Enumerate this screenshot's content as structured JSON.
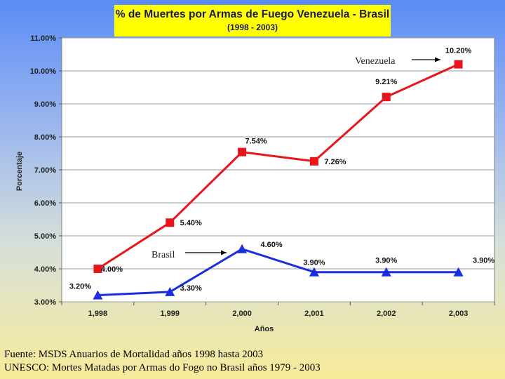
{
  "chart_data": {
    "type": "line",
    "title": "% de Muertes por Armas de Fuego Venezuela - Brasil",
    "subtitle": "(1998 - 2003)",
    "xlabel": "Años",
    "ylabel": "Porcentaje",
    "x": [
      "1,998",
      "1,999",
      "2,000",
      "2,001",
      "2,002",
      "2,003"
    ],
    "ylim": [
      3.0,
      11.0
    ],
    "yticks": [
      "3.00%",
      "4.00%",
      "5.00%",
      "6.00%",
      "7.00%",
      "8.00%",
      "9.00%",
      "10.00%",
      "11.00%"
    ],
    "grid": true,
    "series": [
      {
        "name": "Venezuela",
        "color": "#e8161b",
        "marker": "square",
        "values": [
          4.0,
          5.4,
          7.54,
          7.26,
          9.21,
          10.2
        ],
        "labels": [
          "4.00%",
          "5.40%",
          "7.54%",
          "7.26%",
          "9.21%",
          "10.20%"
        ]
      },
      {
        "name": "Brasil",
        "color": "#1a2ee0",
        "marker": "triangle",
        "values": [
          3.2,
          3.3,
          4.6,
          3.9,
          3.9,
          3.9
        ],
        "labels": [
          "3.20%",
          "3.30%",
          "4.60%",
          "3.90%",
          "3.90%",
          "3.90%"
        ]
      }
    ]
  },
  "footer": {
    "line1": "Fuente: MSDS Anuarios de Mortalidad años 1998 hasta 2003",
    "line2": "UNESCO: Mortes Matadas por Armas do Fogo no Brasil años 1979 - 2003"
  }
}
